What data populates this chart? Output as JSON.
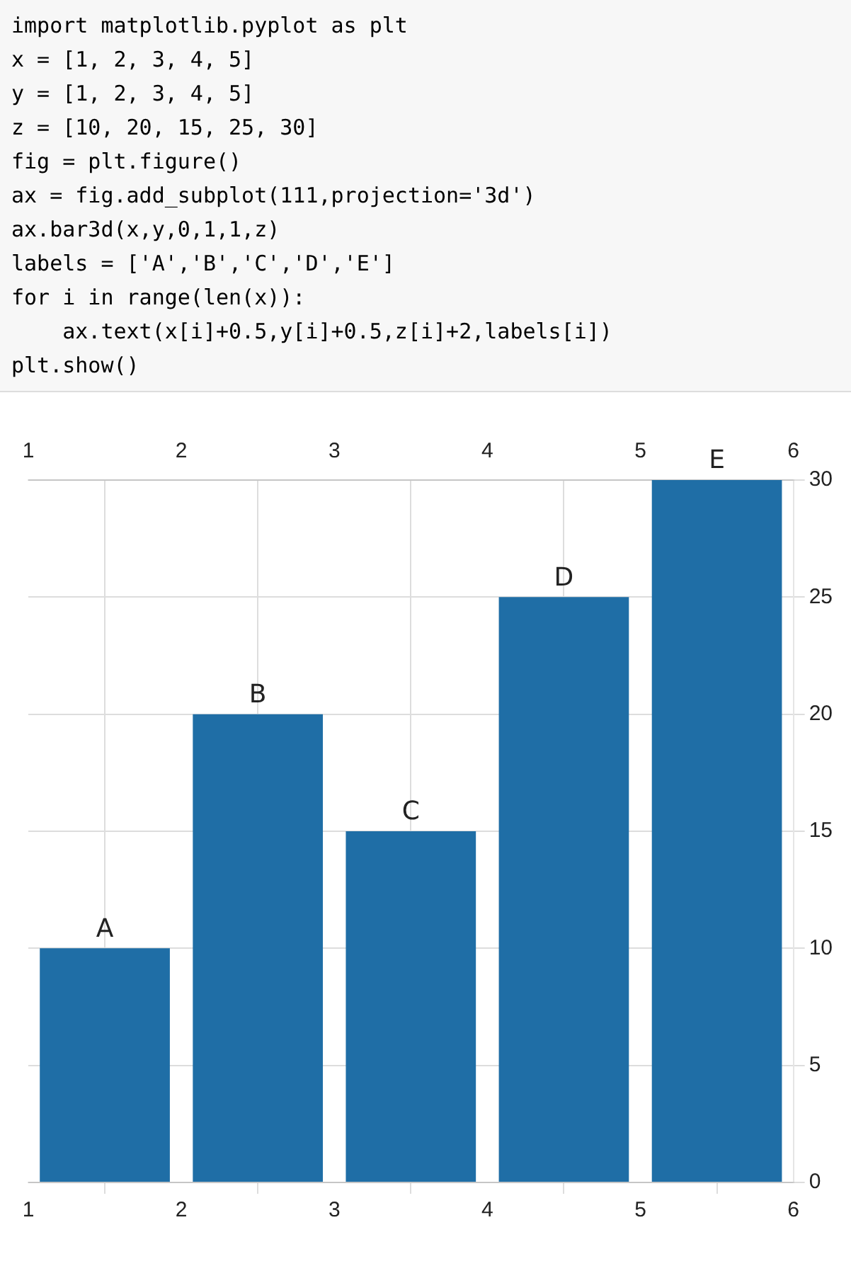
{
  "chart_data": {
    "type": "bar",
    "annotations": [
      "import matplotlib.pyplot as plt",
      "x = [1, 2, 3, 4, 5]",
      "y = [1, 2, 3, 4, 5]",
      "z = [10, 20, 15, 25, 30]",
      "fig = plt.figure()",
      "ax = fig.add_subplot(111,projection='3d')",
      "ax.bar3d(x,y,0,1,1,z)",
      "labels = ['A','B','C','D','E']",
      "for i in range(len(x)):",
      "    ax.text(x[i]+0.5,y[i]+0.5,z[i]+2,labels[i])",
      "plt.show()",
      {
        "text": "A",
        "x": 1.5,
        "y": 10
      },
      {
        "text": "B",
        "x": 2.5,
        "y": 20
      },
      {
        "text": "C",
        "x": 3.5,
        "y": 15
      },
      {
        "text": "D",
        "x": 4.5,
        "y": 25
      },
      {
        "text": "E",
        "x": 5.5,
        "y": 30
      }
    ],
    "x": [
      1.5,
      2.5,
      3.5,
      4.5,
      5.5
    ],
    "values": [
      10,
      20,
      15,
      25,
      30
    ],
    "color": "#1f6ea6",
    "xlim": [
      1,
      6
    ],
    "xticks": [
      1,
      2,
      3,
      4,
      5,
      6
    ],
    "x2lim": [
      1,
      6
    ],
    "x2ticks": [
      1,
      2,
      3,
      4,
      5,
      6
    ],
    "ylim": [
      0,
      30
    ],
    "yticks": [
      0,
      5,
      10,
      15,
      20,
      25,
      30
    ],
    "grid": true,
    "legend": false
  }
}
